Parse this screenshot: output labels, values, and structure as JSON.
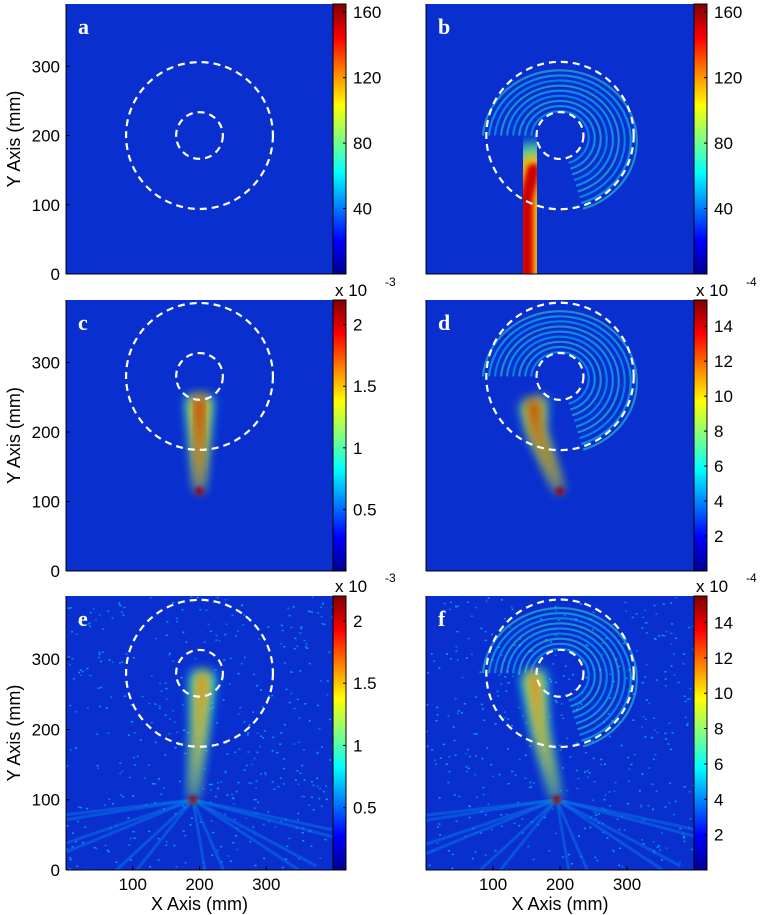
{
  "colormap": [
    "#00008f",
    "#0000ff",
    "#0080ff",
    "#00ffff",
    "#80ff80",
    "#ffff00",
    "#ff8000",
    "#ff0000",
    "#800000"
  ],
  "background_color": "#0a2fcf",
  "ring_color": "#ffffff",
  "chart_data": [
    {
      "type": "heatmap",
      "panel_label": "a",
      "xlim": [
        0,
        400
      ],
      "ylim": [
        0,
        390
      ],
      "xticks": [],
      "xlabel": "",
      "yticks": [
        0,
        100,
        200,
        300
      ],
      "ylabel": "Y Axis (mm)",
      "colorbar": {
        "ticks": [
          "40",
          "80",
          "120",
          "160"
        ],
        "tick_values": [
          40,
          80,
          120,
          160
        ],
        "range": [
          0,
          165
        ],
        "exponent_prefix": "",
        "exponent": ""
      },
      "rings": {
        "center": [
          200,
          200
        ],
        "inner_radius": 35,
        "outer_radius": 110
      },
      "beam": {
        "path": [
          [
            200,
            0
          ],
          [
            200,
            170
          ]
        ],
        "width": 55,
        "peak": 1.0
      },
      "swirl": false,
      "scatter": 0
    },
    {
      "type": "heatmap",
      "panel_label": "b",
      "xlim": [
        0,
        400
      ],
      "ylim": [
        0,
        390
      ],
      "xticks": [],
      "xlabel": "",
      "yticks": [],
      "ylabel": "",
      "colorbar": {
        "ticks": [
          "40",
          "80",
          "120",
          "160"
        ],
        "tick_values": [
          40,
          80,
          120,
          160
        ],
        "range": [
          0,
          165
        ],
        "exponent_prefix": "",
        "exponent": ""
      },
      "rings": {
        "center": [
          200,
          200
        ],
        "inner_radius": 35,
        "outer_radius": 110
      },
      "beam": {
        "path": [
          [
            150,
            0
          ],
          [
            150,
            110
          ],
          [
            160,
            150
          ]
        ],
        "width": 55,
        "peak": 1.0
      },
      "swirl": true,
      "scatter": 0
    },
    {
      "type": "heatmap",
      "panel_label": "c",
      "xlim": [
        0,
        400
      ],
      "ylim": [
        0,
        390
      ],
      "xticks": [],
      "xlabel": "",
      "yticks": [
        0,
        100,
        200,
        300
      ],
      "ylabel": "Y Axis (mm)",
      "colorbar": {
        "ticks": [
          "0.5",
          "1",
          "1.5",
          "2"
        ],
        "tick_values": [
          0.5,
          1,
          1.5,
          2
        ],
        "range": [
          0,
          2.2
        ],
        "exponent_prefix": "x 10",
        "exponent": "-3"
      },
      "rings": {
        "center": [
          200,
          280
        ],
        "inner_radius": 35,
        "outer_radius": 110
      },
      "beam": {
        "path": [
          [
            200,
            115
          ],
          [
            200,
            250
          ]
        ],
        "width": 40,
        "peak": 1.0,
        "tapered": true
      },
      "swirl": false,
      "scatter": 0
    },
    {
      "type": "heatmap",
      "panel_label": "d",
      "xlim": [
        0,
        400
      ],
      "ylim": [
        0,
        390
      ],
      "xticks": [],
      "xlabel": "",
      "yticks": [],
      "ylabel": "",
      "colorbar": {
        "ticks": [
          "2",
          "4",
          "6",
          "8",
          "10",
          "12",
          "14"
        ],
        "tick_values": [
          2,
          4,
          6,
          8,
          10,
          12,
          14
        ],
        "range": [
          0,
          15.5
        ],
        "exponent_prefix": "x 10",
        "exponent": "-4"
      },
      "rings": {
        "center": [
          200,
          280
        ],
        "inner_radius": 35,
        "outer_radius": 110
      },
      "beam": {
        "path": [
          [
            200,
            115
          ],
          [
            165,
            200
          ],
          [
            160,
            245
          ]
        ],
        "width": 40,
        "peak": 1.0,
        "tapered": true
      },
      "swirl": true,
      "scatter": 0
    },
    {
      "type": "heatmap",
      "panel_label": "e",
      "xlim": [
        0,
        400
      ],
      "ylim": [
        0,
        390
      ],
      "xticks": [
        100,
        200,
        300
      ],
      "xlabel": "X Axis (mm)",
      "yticks": [
        0,
        100,
        200,
        300
      ],
      "ylabel": "Y Axis (mm)",
      "colorbar": {
        "ticks": [
          "0.5",
          "1",
          "1.5",
          "2"
        ],
        "tick_values": [
          0.5,
          1,
          1.5,
          2
        ],
        "range": [
          0,
          2.2
        ],
        "exponent_prefix": "x 10",
        "exponent": "-3"
      },
      "rings": {
        "center": [
          200,
          280
        ],
        "inner_radius": 35,
        "outer_radius": 110
      },
      "beam": {
        "path": [
          [
            190,
            100
          ],
          [
            200,
            200
          ],
          [
            205,
            280
          ]
        ],
        "width": 35,
        "peak": 0.85,
        "tapered": true
      },
      "swirl": false,
      "scatter": 0.55
    },
    {
      "type": "heatmap",
      "panel_label": "f",
      "xlim": [
        0,
        400
      ],
      "ylim": [
        0,
        390
      ],
      "xticks": [
        100,
        200,
        300
      ],
      "xlabel": "X Axis (mm)",
      "yticks": [],
      "ylabel": "",
      "colorbar": {
        "ticks": [
          "2",
          "4",
          "6",
          "8",
          "10",
          "12",
          "14"
        ],
        "tick_values": [
          2,
          4,
          6,
          8,
          10,
          12,
          14
        ],
        "range": [
          0,
          15.5
        ],
        "exponent_prefix": "x 10",
        "exponent": "-4"
      },
      "rings": {
        "center": [
          200,
          280
        ],
        "inner_radius": 35,
        "outer_radius": 110
      },
      "beam": {
        "path": [
          [
            195,
            100
          ],
          [
            170,
            200
          ],
          [
            160,
            280
          ]
        ],
        "width": 35,
        "peak": 0.85,
        "tapered": true
      },
      "swirl": true,
      "scatter": 0.55
    }
  ]
}
